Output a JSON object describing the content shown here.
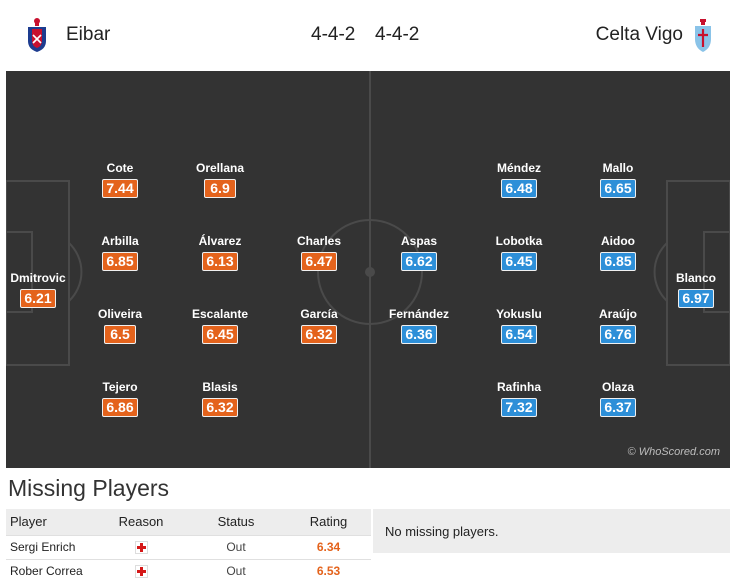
{
  "header": {
    "home_team": "Eibar",
    "away_team": "Celta Vigo",
    "home_formation": "4-4-2",
    "away_formation": "4-4-2",
    "home_crest_icon": "eibar-crest-icon",
    "away_crest_icon": "celta-crest-icon"
  },
  "colors": {
    "home_rating": "#e4631c",
    "away_rating": "#2d8fd8",
    "pitch": "#333333"
  },
  "home_players": [
    {
      "name": "Dmitrovic",
      "rating": "6.21"
    },
    {
      "name": "Cote",
      "rating": "7.44"
    },
    {
      "name": "Arbilla",
      "rating": "6.85"
    },
    {
      "name": "Oliveira",
      "rating": "6.5"
    },
    {
      "name": "Tejero",
      "rating": "6.86"
    },
    {
      "name": "Orellana",
      "rating": "6.9"
    },
    {
      "name": "Álvarez",
      "rating": "6.13"
    },
    {
      "name": "Escalante",
      "rating": "6.45"
    },
    {
      "name": "Blasis",
      "rating": "6.32"
    },
    {
      "name": "Charles",
      "rating": "6.47"
    },
    {
      "name": "García",
      "rating": "6.32"
    }
  ],
  "away_players": [
    {
      "name": "Aspas",
      "rating": "6.62"
    },
    {
      "name": "Fernández",
      "rating": "6.36"
    },
    {
      "name": "Méndez",
      "rating": "6.48"
    },
    {
      "name": "Lobotka",
      "rating": "6.45"
    },
    {
      "name": "Yokuslu",
      "rating": "6.54"
    },
    {
      "name": "Rafinha",
      "rating": "7.32"
    },
    {
      "name": "Mallo",
      "rating": "6.65"
    },
    {
      "name": "Aidoo",
      "rating": "6.85"
    },
    {
      "name": "Araújo",
      "rating": "6.76"
    },
    {
      "name": "Olaza",
      "rating": "6.37"
    },
    {
      "name": "Blanco",
      "rating": "6.97"
    }
  ],
  "watermark": "© WhoScored.com",
  "missing": {
    "title": "Missing Players",
    "columns": [
      "Player",
      "Reason",
      "Status",
      "Rating"
    ],
    "rows": [
      {
        "player": "Sergi Enrich",
        "reason_icon": "injury-icon",
        "status": "Out",
        "rating": "6.34"
      },
      {
        "player": "Rober Correa",
        "reason_icon": "injury-icon",
        "status": "Out",
        "rating": "6.53"
      }
    ],
    "away_message": "No missing players."
  }
}
